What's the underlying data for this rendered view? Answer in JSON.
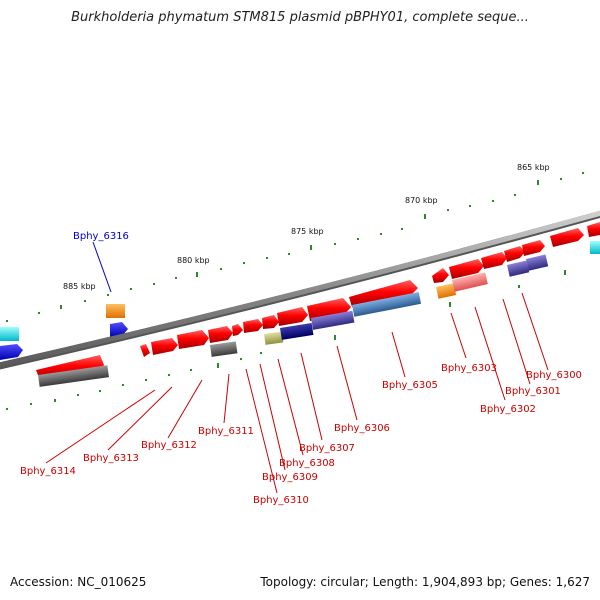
{
  "title": "Burkholderia phymatum STM815 plasmid pBPHY01, complete seque...",
  "accession": "Accession: NC_010625",
  "summary": "Topology: circular; Length: 1,904,893 bp; Genes: 1,627",
  "kbp_labels": [
    "865 kbp",
    "870 kbp",
    "875 kbp",
    "880 kbp",
    "885 kbp"
  ],
  "genes": [
    {
      "label": "Bphy_6300",
      "color": "#cc0000"
    },
    {
      "label": "Bphy_6301",
      "color": "#cc0000"
    },
    {
      "label": "Bphy_6302",
      "color": "#cc0000"
    },
    {
      "label": "Bphy_6303",
      "color": "#cc0000"
    },
    {
      "label": "Bphy_6305",
      "color": "#cc0000"
    },
    {
      "label": "Bphy_6306",
      "color": "#cc0000"
    },
    {
      "label": "Bphy_6307",
      "color": "#cc0000"
    },
    {
      "label": "Bphy_6308",
      "color": "#cc0000"
    },
    {
      "label": "Bphy_6309",
      "color": "#cc0000"
    },
    {
      "label": "Bphy_6310",
      "color": "#cc0000"
    },
    {
      "label": "Bphy_6311",
      "color": "#cc0000"
    },
    {
      "label": "Bphy_6312",
      "color": "#cc0000"
    },
    {
      "label": "Bphy_6313",
      "color": "#cc0000"
    },
    {
      "label": "Bphy_6314",
      "color": "#cc0000"
    },
    {
      "label": "Bphy_6316",
      "color": "#0000cc"
    }
  ]
}
